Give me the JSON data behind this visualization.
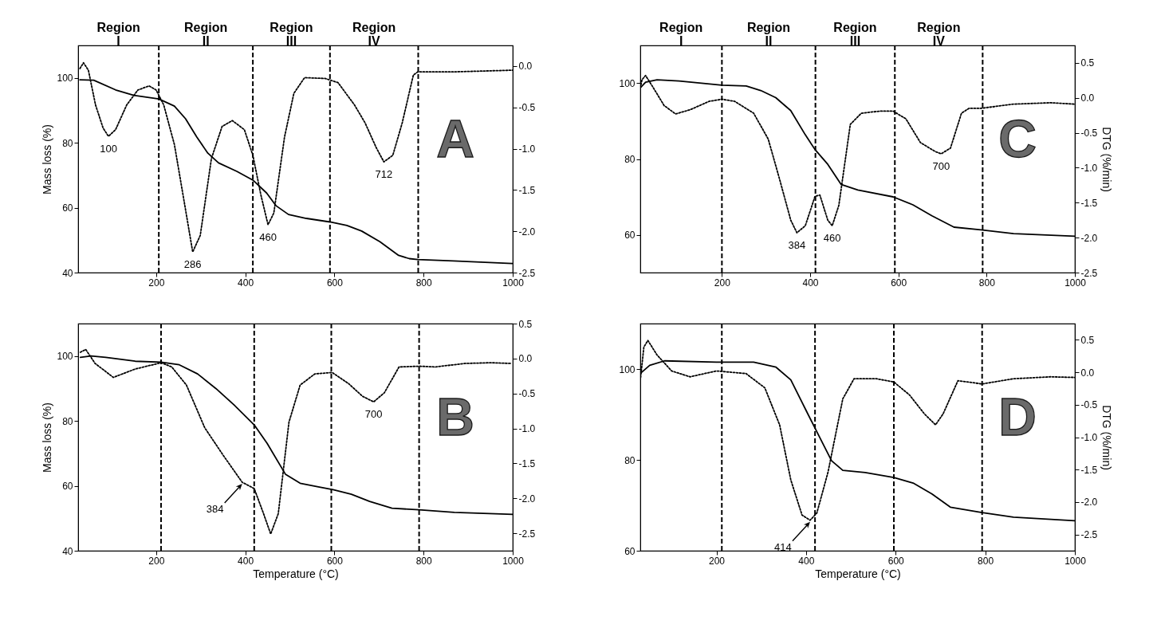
{
  "chart_data": [
    {
      "type": "line",
      "ylabel": "Mass loss (%)",
      "xlim": [
        25,
        1000
      ],
      "xticks": [
        200,
        400,
        600,
        800,
        1000
      ],
      "ylim": [
        40,
        110
      ],
      "yticks": [
        40,
        60,
        80,
        100
      ],
      "y2lim": [
        -2.5,
        0.25
      ],
      "y2ticks": [
        {
          "value": 0,
          "label": "0.0"
        },
        -0.5,
        {
          "value": -1,
          "label": "-1.0"
        },
        -1.5,
        {
          "value": -2,
          "label": "-2.0"
        },
        -2.5
      ],
      "series": [
        {
          "color": "#000000",
          "line_style": "solid",
          "x": [
            29,
            60,
            109,
            150,
            206,
            241,
            266,
            291,
            316,
            340,
            381,
            417,
            448,
            469,
            497,
            537,
            590,
            628,
            661,
            702,
            744,
            768,
            787,
            867,
            999
          ],
          "values": [
            99.4,
            99.3,
            96.3,
            94.6,
            93.5,
            91.3,
            87.4,
            81.8,
            76.8,
            73.8,
            71.2,
            68.5,
            64.5,
            60.6,
            57.9,
            56.7,
            55.6,
            54.5,
            52.8,
            49.5,
            45.3,
            44.3,
            44.0,
            43.6,
            42.8
          ]
        },
        {
          "color": "#000000",
          "line_style": "dotted",
          "axis": "y2",
          "x": [
            29,
            37,
            48,
            64,
            81,
            93,
            109,
            134,
            159,
            184,
            200,
            217,
            241,
            266,
            282,
            299,
            324,
            348,
            371,
            398,
            417,
            435,
            451,
            464,
            488,
            509,
            533,
            579,
            608,
            645,
            669,
            694,
            711,
            731,
            752,
            777,
            787,
            867,
            999
          ],
          "values": [
            -0.03,
            0.04,
            -0.05,
            -0.47,
            -0.75,
            -0.85,
            -0.77,
            -0.47,
            -0.29,
            -0.24,
            -0.29,
            -0.47,
            -0.95,
            -1.74,
            -2.25,
            -2.05,
            -1.12,
            -0.73,
            -0.66,
            -0.77,
            -1.08,
            -1.56,
            -1.92,
            -1.78,
            -0.86,
            -0.33,
            -0.14,
            -0.15,
            -0.2,
            -0.47,
            -0.69,
            -0.99,
            -1.16,
            -1.08,
            -0.69,
            -0.11,
            -0.07,
            -0.07,
            -0.05
          ]
        }
      ],
      "ref_lines": [
        {
          "axis": "x",
          "value": 206,
          "line_style": "dashed"
        },
        {
          "axis": "x",
          "value": 417,
          "line_style": "dashed"
        },
        {
          "axis": "x",
          "value": 590,
          "line_style": "dashed"
        },
        {
          "axis": "x",
          "value": 788,
          "line_style": "dashed"
        }
      ],
      "annotations": [
        "Region I",
        "Region II",
        "Region III",
        "Region IV",
        "A",
        {
          "text": "100",
          "x": 93,
          "y": 82.0
        },
        {
          "text": "286",
          "x": 282,
          "y": 46.4
        },
        {
          "text": "460",
          "x": 451,
          "y": 54.8
        },
        {
          "text": "712",
          "x": 711,
          "y": 74.1
        }
      ]
    },
    {
      "type": "line",
      "y2label": "DTG (%/min)",
      "xlim": [
        15,
        1000
      ],
      "xticks": [
        200,
        400,
        600,
        800,
        1000
      ],
      "ylim": [
        50,
        110
      ],
      "yticks": [
        60,
        80,
        100
      ],
      "y2lim": [
        -2.5,
        0.75
      ],
      "y2ticks": [
        0.5,
        {
          "value": 0,
          "label": "0.0"
        },
        -0.5,
        {
          "value": -1,
          "label": "-1.0"
        },
        -1.5,
        {
          "value": -2,
          "label": "-2.0"
        },
        -2.5
      ],
      "series": [
        {
          "color": "#000000",
          "line_style": "solid",
          "x": [
            16,
            27,
            53,
            103,
            200,
            255,
            288,
            322,
            356,
            389,
            411,
            440,
            470,
            508,
            588,
            633,
            676,
            726,
            787,
            861,
            1000
          ],
          "values": [
            98.9,
            100.3,
            100.9,
            100.6,
            99.5,
            99.3,
            98.1,
            96.2,
            92.8,
            86.4,
            82.5,
            78.6,
            73.3,
            71.8,
            70.0,
            67.9,
            65.0,
            62.0,
            61.3,
            60.3,
            59.6
          ]
        },
        {
          "color": "#000000",
          "line_style": "dotted",
          "axis": "y2",
          "x": [
            15,
            19,
            27,
            44,
            69,
            95,
            128,
            171,
            200,
            229,
            272,
            305,
            331,
            356,
            370,
            389,
            411,
            422,
            440,
            450,
            465,
            491,
            516,
            558,
            588,
            617,
            650,
            684,
            697,
            718,
            743,
            760,
            787,
            861,
            945,
            1000
          ],
          "values": [
            0.14,
            0.26,
            0.32,
            0.15,
            -0.11,
            -0.23,
            -0.17,
            -0.05,
            -0.02,
            -0.05,
            -0.22,
            -0.59,
            -1.17,
            -1.75,
            -1.93,
            -1.83,
            -1.41,
            -1.39,
            -1.75,
            -1.83,
            -1.54,
            -0.38,
            -0.22,
            -0.19,
            -0.19,
            -0.3,
            -0.64,
            -0.77,
            -0.8,
            -0.72,
            -0.22,
            -0.15,
            -0.15,
            -0.09,
            -0.07,
            -0.09
          ]
        }
      ],
      "ref_lines": [
        {
          "axis": "x",
          "value": 200,
          "line_style": "dashed"
        },
        {
          "axis": "x",
          "value": 412,
          "line_style": "dashed"
        },
        {
          "axis": "x",
          "value": 592,
          "line_style": "dashed"
        },
        {
          "axis": "x",
          "value": 791,
          "line_style": "dashed"
        }
      ],
      "annotations": [
        "Region I",
        "Region II",
        "Region III",
        "Region IV",
        "C",
        {
          "text": "384",
          "x": 370,
          "y": 60.5
        },
        {
          "text": "460",
          "x": 450,
          "y": 62.4
        },
        {
          "text": "700",
          "x": 697,
          "y": 81.4
        }
      ]
    },
    {
      "type": "line",
      "xlabel": "Temperature (°C)",
      "ylabel": "Mass loss (%)",
      "xlim": [
        25,
        1000
      ],
      "xticks": [
        200,
        400,
        600,
        800,
        1000
      ],
      "ylim": [
        40,
        110
      ],
      "yticks": [
        40,
        60,
        80,
        100
      ],
      "y2lim": [
        -2.75,
        0.5
      ],
      "y2ticks": [
        0.5,
        {
          "value": 0,
          "label": "0.0"
        },
        -0.5,
        {
          "value": -1,
          "label": "-1.0"
        },
        -1.5,
        {
          "value": -2,
          "label": "-2.0"
        },
        -2.5
      ],
      "series": [
        {
          "color": "#000000",
          "line_style": "solid",
          "x": [
            30,
            54,
            87,
            153,
            211,
            252,
            293,
            334,
            375,
            420,
            449,
            490,
            523,
            564,
            597,
            638,
            679,
            729,
            790,
            869,
            1000
          ],
          "values": [
            99.6,
            100,
            99.6,
            98.4,
            98.1,
            97.3,
            94.5,
            90.0,
            84.9,
            78.8,
            73.1,
            63.6,
            60.8,
            59.7,
            58.8,
            57.4,
            55.2,
            53.1,
            52.6,
            51.8,
            51.2
          ]
        },
        {
          "color": "#000000",
          "line_style": "dotted",
          "axis": "y2",
          "x": [
            30,
            42,
            63,
            104,
            153,
            211,
            235,
            268,
            309,
            350,
            393,
            420,
            441,
            457,
            474,
            498,
            523,
            556,
            595,
            632,
            663,
            688,
            712,
            745,
            790,
            827,
            893,
            951,
            996
          ],
          "values": [
            0.09,
            0.13,
            -0.07,
            -0.27,
            -0.15,
            -0.06,
            -0.12,
            -0.38,
            -0.99,
            -1.38,
            -1.77,
            -1.86,
            -2.22,
            -2.51,
            -2.22,
            -0.91,
            -0.38,
            -0.22,
            -0.2,
            -0.36,
            -0.54,
            -0.62,
            -0.49,
            -0.12,
            -0.11,
            -0.12,
            -0.07,
            -0.06,
            -0.07
          ]
        }
      ],
      "ref_lines": [
        {
          "axis": "x",
          "value": 211,
          "line_style": "dashed"
        },
        {
          "axis": "x",
          "value": 420,
          "line_style": "dashed"
        },
        {
          "axis": "x",
          "value": 593,
          "line_style": "dashed"
        },
        {
          "axis": "x",
          "value": 790,
          "line_style": "dashed"
        }
      ],
      "annotations": [
        "B",
        {
          "text": "384",
          "x": 393,
          "y": 61.1
        },
        {
          "text": "700",
          "x": 688,
          "y": 85.9
        }
      ]
    },
    {
      "type": "line",
      "xlabel": "Temperature (°C)",
      "y2label": "DTG (%/min)",
      "xlim": [
        30,
        1000
      ],
      "xticks": [
        200,
        400,
        600,
        800,
        1000
      ],
      "ylim": [
        60,
        110
      ],
      "yticks": [
        60,
        80,
        100
      ],
      "y2lim": [
        -2.75,
        0.75
      ],
      "y2ticks": [
        0.5,
        {
          "value": 0,
          "label": "0.0"
        },
        -0.5,
        {
          "value": -1,
          "label": "-1.0"
        },
        -1.5,
        {
          "value": -2,
          "label": "-2.0"
        },
        -2.5
      ],
      "series": [
        {
          "color": "#000000",
          "line_style": "solid",
          "x": [
            32,
            51,
            84,
            200,
            283,
            333,
            366,
            399,
            424,
            457,
            482,
            532,
            596,
            639,
            681,
            722,
            793,
            863,
            1000
          ],
          "values": [
            99.2,
            100.8,
            101.8,
            101.5,
            101.5,
            100.4,
            97.6,
            91.1,
            86.2,
            79.8,
            77.7,
            77.2,
            76.1,
            74.9,
            72.5,
            69.6,
            68.4,
            67.4,
            66.6
          ]
        },
        {
          "color": "#000000",
          "line_style": "dotted",
          "axis": "y2",
          "x": [
            30,
            38,
            47,
            67,
            100,
            141,
            200,
            266,
            308,
            341,
            366,
            391,
            409,
            424,
            449,
            482,
            507,
            557,
            596,
            631,
            664,
            689,
            706,
            739,
            793,
            863,
            946,
            1000
          ],
          "values": [
            -0.13,
            0.39,
            0.49,
            0.27,
            0.02,
            -0.07,
            0.02,
            -0.02,
            -0.24,
            -0.81,
            -1.66,
            -2.2,
            -2.28,
            -2.17,
            -1.54,
            -0.41,
            -0.1,
            -0.1,
            -0.15,
            -0.35,
            -0.64,
            -0.81,
            -0.64,
            -0.13,
            -0.18,
            -0.1,
            -0.07,
            -0.08
          ]
        }
      ],
      "ref_lines": [
        {
          "axis": "x",
          "value": 212,
          "line_style": "dashed"
        },
        {
          "axis": "x",
          "value": 420,
          "line_style": "dashed"
        },
        {
          "axis": "x",
          "value": 596,
          "line_style": "dashed"
        },
        {
          "axis": "x",
          "value": 793,
          "line_style": "dashed"
        }
      ],
      "annotations": [
        "D",
        {
          "text": "414",
          "x": 409,
          "y": 66.7
        }
      ]
    }
  ]
}
